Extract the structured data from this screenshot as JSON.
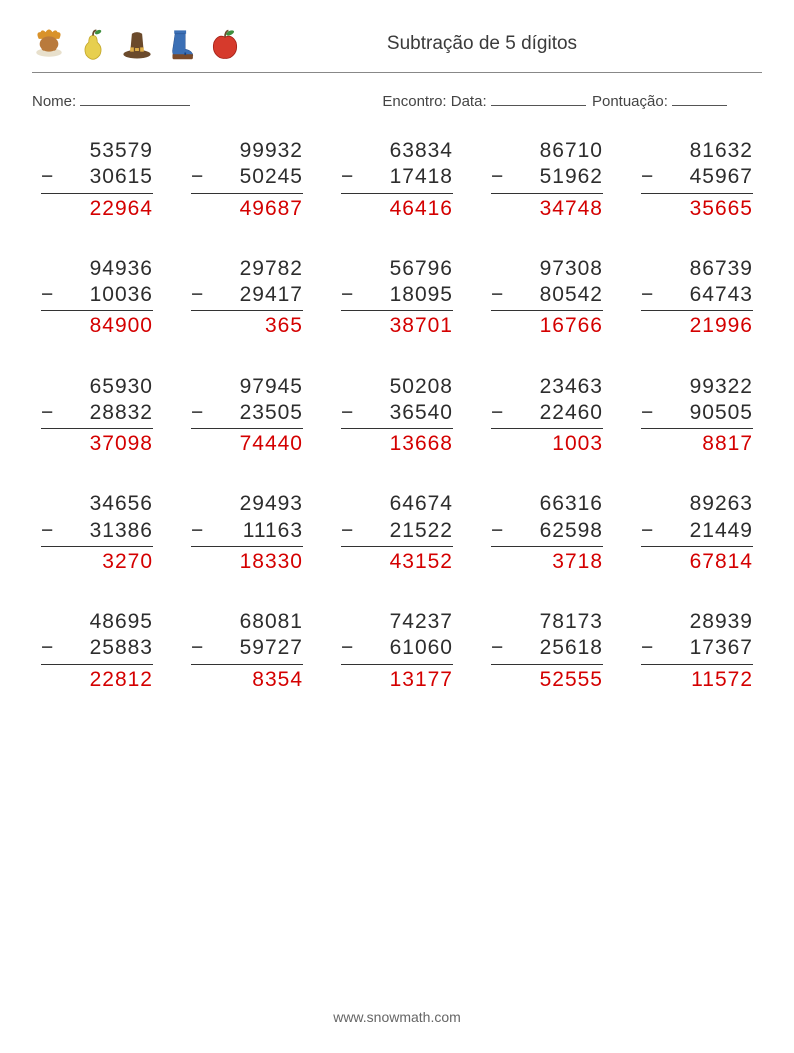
{
  "header": {
    "title": "Subtração de 5 dígitos",
    "icons": [
      {
        "name": "turkey",
        "colors": {
          "body": "#b97a3c",
          "tail": "#d9922a",
          "plate": "#e8e0cc"
        }
      },
      {
        "name": "pear",
        "colors": {
          "body": "#e7cf4f",
          "leaf": "#3f8f3f"
        }
      },
      {
        "name": "hat",
        "colors": {
          "body": "#6b4a2b",
          "band": "#e0b04a"
        }
      },
      {
        "name": "boot",
        "colors": {
          "body": "#3b6fb5",
          "sole": "#7a4a2a"
        }
      },
      {
        "name": "apple",
        "colors": {
          "body": "#d63a2c",
          "leaf": "#3f8f3f",
          "stem": "#6b4a2b"
        }
      }
    ]
  },
  "info": {
    "name_label": "Nome:",
    "encounter_label": "Encontro: Data:",
    "score_label": "Pontuação:"
  },
  "style": {
    "problem_color": "#2d2d2d",
    "answer_color": "#d40000",
    "font_size_pt": 16,
    "operator": "−"
  },
  "problems": [
    [
      {
        "a": 53579,
        "b": 30615,
        "ans": 22964
      },
      {
        "a": 99932,
        "b": 50245,
        "ans": 49687
      },
      {
        "a": 63834,
        "b": 17418,
        "ans": 46416
      },
      {
        "a": 86710,
        "b": 51962,
        "ans": 34748
      },
      {
        "a": 81632,
        "b": 45967,
        "ans": 35665
      }
    ],
    [
      {
        "a": 94936,
        "b": 10036,
        "ans": 84900
      },
      {
        "a": 29782,
        "b": 29417,
        "ans": 365
      },
      {
        "a": 56796,
        "b": 18095,
        "ans": 38701
      },
      {
        "a": 97308,
        "b": 80542,
        "ans": 16766
      },
      {
        "a": 86739,
        "b": 64743,
        "ans": 21996
      }
    ],
    [
      {
        "a": 65930,
        "b": 28832,
        "ans": 37098
      },
      {
        "a": 97945,
        "b": 23505,
        "ans": 74440
      },
      {
        "a": 50208,
        "b": 36540,
        "ans": 13668
      },
      {
        "a": 23463,
        "b": 22460,
        "ans": 1003
      },
      {
        "a": 99322,
        "b": 90505,
        "ans": 8817
      }
    ],
    [
      {
        "a": 34656,
        "b": 31386,
        "ans": 3270
      },
      {
        "a": 29493,
        "b": 11163,
        "ans": 18330
      },
      {
        "a": 64674,
        "b": 21522,
        "ans": 43152
      },
      {
        "a": 66316,
        "b": 62598,
        "ans": 3718
      },
      {
        "a": 89263,
        "b": 21449,
        "ans": 67814
      }
    ],
    [
      {
        "a": 48695,
        "b": 25883,
        "ans": 22812
      },
      {
        "a": 68081,
        "b": 59727,
        "ans": 8354
      },
      {
        "a": 74237,
        "b": 61060,
        "ans": 13177
      },
      {
        "a": 78173,
        "b": 25618,
        "ans": 52555
      },
      {
        "a": 28939,
        "b": 17367,
        "ans": 11572
      }
    ]
  ],
  "footer": {
    "url": "www.snowmath.com"
  }
}
